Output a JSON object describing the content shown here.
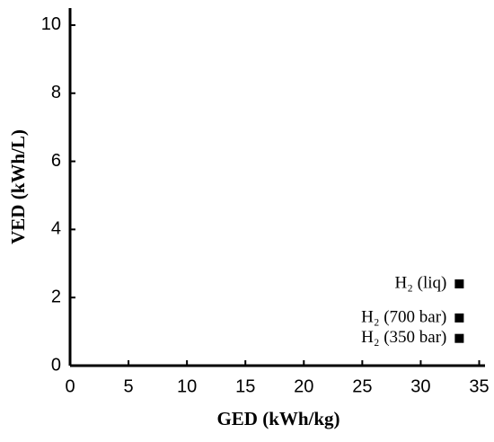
{
  "chart_data": {
    "type": "scatter",
    "x_label": "GED (kWh/kg)",
    "y_label": "VED (kWh/L)",
    "x": [
      33.3,
      33.3,
      33.3
    ],
    "values": [
      2.4,
      1.4,
      0.8
    ],
    "point_labels": [
      "H₂ (liq)",
      "H₂ (700 bar)",
      "H₂ (350 bar)"
    ],
    "color": "#000000",
    "xlim": [
      0,
      35.5
    ],
    "xticks": [
      0,
      5,
      10,
      15,
      20,
      25,
      30,
      35
    ],
    "ylim": [
      0,
      10.5
    ],
    "yticks": [
      0,
      2,
      4,
      6,
      8,
      10
    ]
  }
}
